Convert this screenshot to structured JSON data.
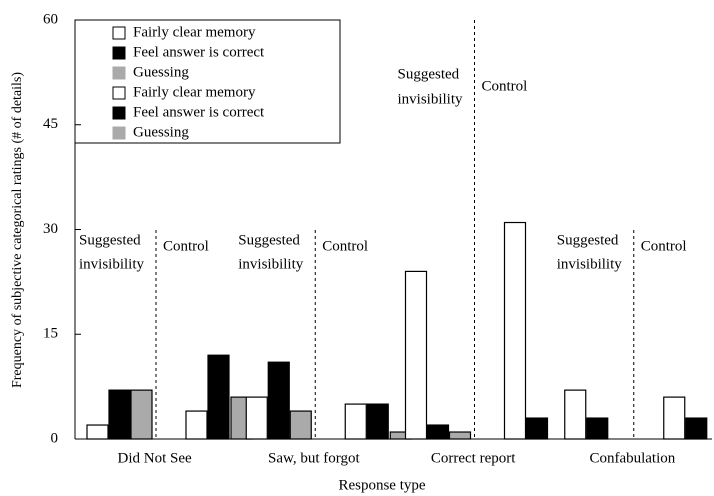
{
  "chart_data": {
    "type": "bar",
    "ylabel": "Frequency of subjective categorical ratings (# of details)",
    "xlabel": "Response type",
    "categories": [
      "Did Not See",
      "Saw, but forgot",
      "Correct report",
      "Confabulation"
    ],
    "series": [
      {
        "name": "Fairly clear memory",
        "color": "#ffffff",
        "values": [
          2,
          6,
          24,
          7
        ]
      },
      {
        "name": "Feel answer is correct",
        "color": "#000000",
        "values": [
          7,
          11,
          2,
          3
        ]
      },
      {
        "name": "Guessing",
        "color": "#aaaaaa",
        "values": [
          7,
          4,
          1,
          0
        ]
      },
      {
        "name": "Fairly clear memory",
        "color": "#ffffff",
        "values": [
          4,
          5,
          31,
          6
        ]
      },
      {
        "name": "Feel answer is correct",
        "color": "#000000",
        "values": [
          12,
          5,
          3,
          3
        ]
      },
      {
        "name": "Guessing",
        "color": "#aaaaaa",
        "values": [
          6,
          1,
          0,
          0
        ]
      }
    ],
    "annotations": [
      {
        "lines": [
          "Suggested",
          "invisibility"
        ]
      },
      {
        "lines": [
          "Control"
        ]
      },
      {
        "lines": [
          "Suggested",
          "invisibility"
        ]
      },
      {
        "lines": [
          "Control"
        ]
      },
      {
        "lines": [
          "Suggested",
          "invisibility"
        ]
      },
      {
        "lines": [
          "Control"
        ]
      },
      {
        "lines": [
          "Suggested",
          "invisibility"
        ]
      },
      {
        "lines": [
          "Control"
        ]
      }
    ],
    "ylim": [
      0,
      60
    ],
    "yticks": [
      0,
      15,
      30,
      45,
      60
    ],
    "grid": false
  }
}
